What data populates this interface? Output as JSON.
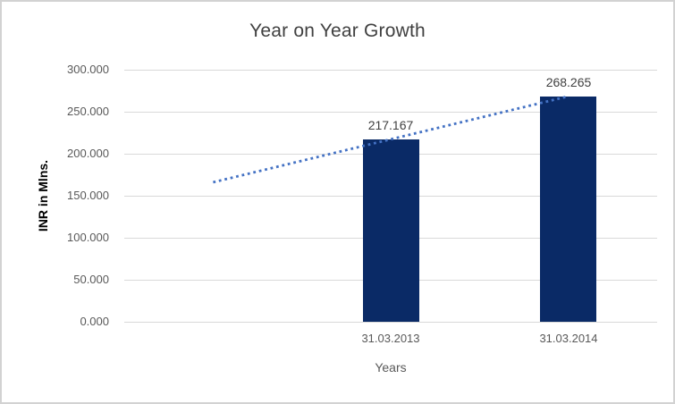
{
  "chart_data": {
    "type": "bar",
    "title": "Year on Year Growth",
    "xlabel": "Years",
    "ylabel": "INR in Mlns.",
    "categories": [
      "31.03.2013",
      "31.03.2014"
    ],
    "values": [
      217.167,
      268.265
    ],
    "data_labels": [
      "217.167",
      "268.265"
    ],
    "ylim": [
      0,
      300
    ],
    "ytick_step": 50,
    "ytick_labels": [
      "0.000",
      "50.000",
      "100.000",
      "150.000",
      "200.000",
      "250.000",
      "300.000"
    ],
    "grid": true,
    "legend": false,
    "bar_center_fracs": [
      0.5,
      0.8333
    ],
    "trendline": {
      "style": "dotted",
      "color": "#4472c4",
      "start": {
        "x_frac": 0.1667,
        "value": 166.1
      },
      "end": {
        "x_frac": 0.8333,
        "value": 268.265
      }
    },
    "colors": {
      "bar": "#0a2a66",
      "grid": "#d9d9d9",
      "trend": "#4472c4",
      "title_text": "#404040",
      "tick_text": "#595959",
      "data_label_text": "#404040"
    }
  }
}
